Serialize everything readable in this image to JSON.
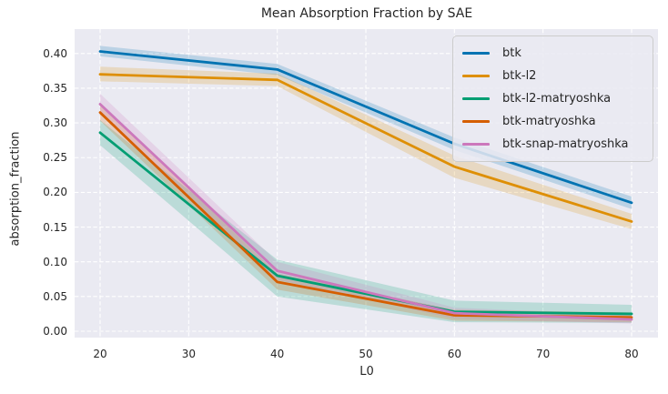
{
  "figure": {
    "title": "Mean Absorption Fraction by SAE",
    "xlabel": "L0",
    "ylabel": "absorption_fraction"
  },
  "colors": {
    "plot_background": "#eaeaf2",
    "gridline": "#ffffff",
    "text": "#262626",
    "legend_border": "#cccccc"
  },
  "chart_data": {
    "type": "line",
    "title": "Mean Absorption Fraction by SAE",
    "xlabel": "L0",
    "ylabel": "absorption_fraction",
    "grid": true,
    "grid_style": "dashed-white",
    "legend_position": "upper right",
    "xlim": [
      17,
      83
    ],
    "ylim": [
      -0.009,
      0.433
    ],
    "x": [
      20,
      40,
      60,
      80
    ],
    "x_ticks": [
      "20",
      "30",
      "40",
      "50",
      "60",
      "70",
      "80"
    ],
    "x_tick_values": [
      20,
      30,
      40,
      50,
      60,
      70,
      80
    ],
    "y_ticks": [
      "0.00",
      "0.05",
      "0.10",
      "0.15",
      "0.20",
      "0.25",
      "0.30",
      "0.35",
      "0.40"
    ],
    "y_tick_values": [
      0.0,
      0.05,
      0.1,
      0.15,
      0.2,
      0.25,
      0.3,
      0.35,
      0.4
    ],
    "band_alpha": 0.2,
    "series": [
      {
        "name": "btk",
        "color": "#0173b2",
        "values": [
          0.403,
          0.377,
          0.27,
          0.185
        ],
        "band_lower": [
          0.396,
          0.369,
          0.261,
          0.176
        ],
        "band_upper": [
          0.411,
          0.385,
          0.279,
          0.194
        ]
      },
      {
        "name": "btk-l2",
        "color": "#de8f05",
        "values": [
          0.37,
          0.362,
          0.237,
          0.158
        ],
        "band_lower": [
          0.36,
          0.353,
          0.221,
          0.147
        ],
        "band_upper": [
          0.381,
          0.371,
          0.253,
          0.169
        ]
      },
      {
        "name": "btk-l2-matryoshka",
        "color": "#029e73",
        "values": [
          0.286,
          0.08,
          0.028,
          0.025
        ],
        "band_lower": [
          0.268,
          0.05,
          0.013,
          0.012
        ],
        "band_upper": [
          0.304,
          0.103,
          0.044,
          0.038
        ]
      },
      {
        "name": "btk-matryoshka",
        "color": "#d55e00",
        "values": [
          0.315,
          0.071,
          0.023,
          0.02
        ],
        "band_lower": [
          0.303,
          0.06,
          0.015,
          0.013
        ],
        "band_upper": [
          0.327,
          0.083,
          0.031,
          0.027
        ]
      },
      {
        "name": "btk-snap-matryoshka",
        "color": "#cc78bc",
        "values": [
          0.327,
          0.087,
          0.026,
          0.017
        ],
        "band_lower": [
          0.313,
          0.074,
          0.018,
          0.011
        ],
        "band_upper": [
          0.342,
          0.1,
          0.034,
          0.023
        ]
      }
    ]
  }
}
